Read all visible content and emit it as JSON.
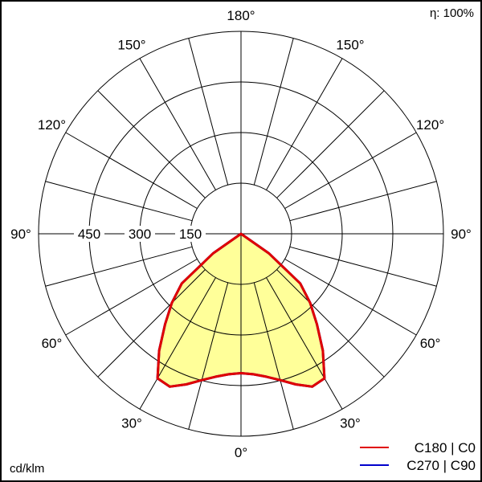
{
  "chart_data": {
    "type": "polar",
    "efficiency_label": "η: 100%",
    "unit_label": "cd/klm",
    "radial_ticks": [
      150,
      300,
      450
    ],
    "radial_max": 600,
    "angle_labels": [
      "0°",
      "30°",
      "60°",
      "90°",
      "120°",
      "150°",
      "180°"
    ],
    "angle_label_values": [
      0,
      30,
      60,
      90,
      120,
      150,
      180
    ],
    "angles": [
      0,
      5,
      10,
      15,
      20,
      25,
      30,
      35,
      40,
      45,
      50,
      55,
      60,
      65,
      70,
      75,
      80,
      85,
      90
    ],
    "series": [
      {
        "name": "C270 | C90",
        "color": "#0000cc",
        "values": [
          413,
          418,
          430,
          449,
          475,
          500,
          495,
          423,
          350,
          290,
          229,
          100,
          0,
          0,
          0,
          0,
          0,
          0,
          0
        ]
      },
      {
        "name": "C180 | C0",
        "color": "#e00000",
        "values": [
          413,
          418,
          430,
          449,
          475,
          500,
          495,
          423,
          350,
          290,
          229,
          100,
          0,
          0,
          0,
          0,
          0,
          0,
          0
        ]
      }
    ],
    "fill_color": "#ffff99",
    "grid": true,
    "legend_position": "bottom-right"
  }
}
